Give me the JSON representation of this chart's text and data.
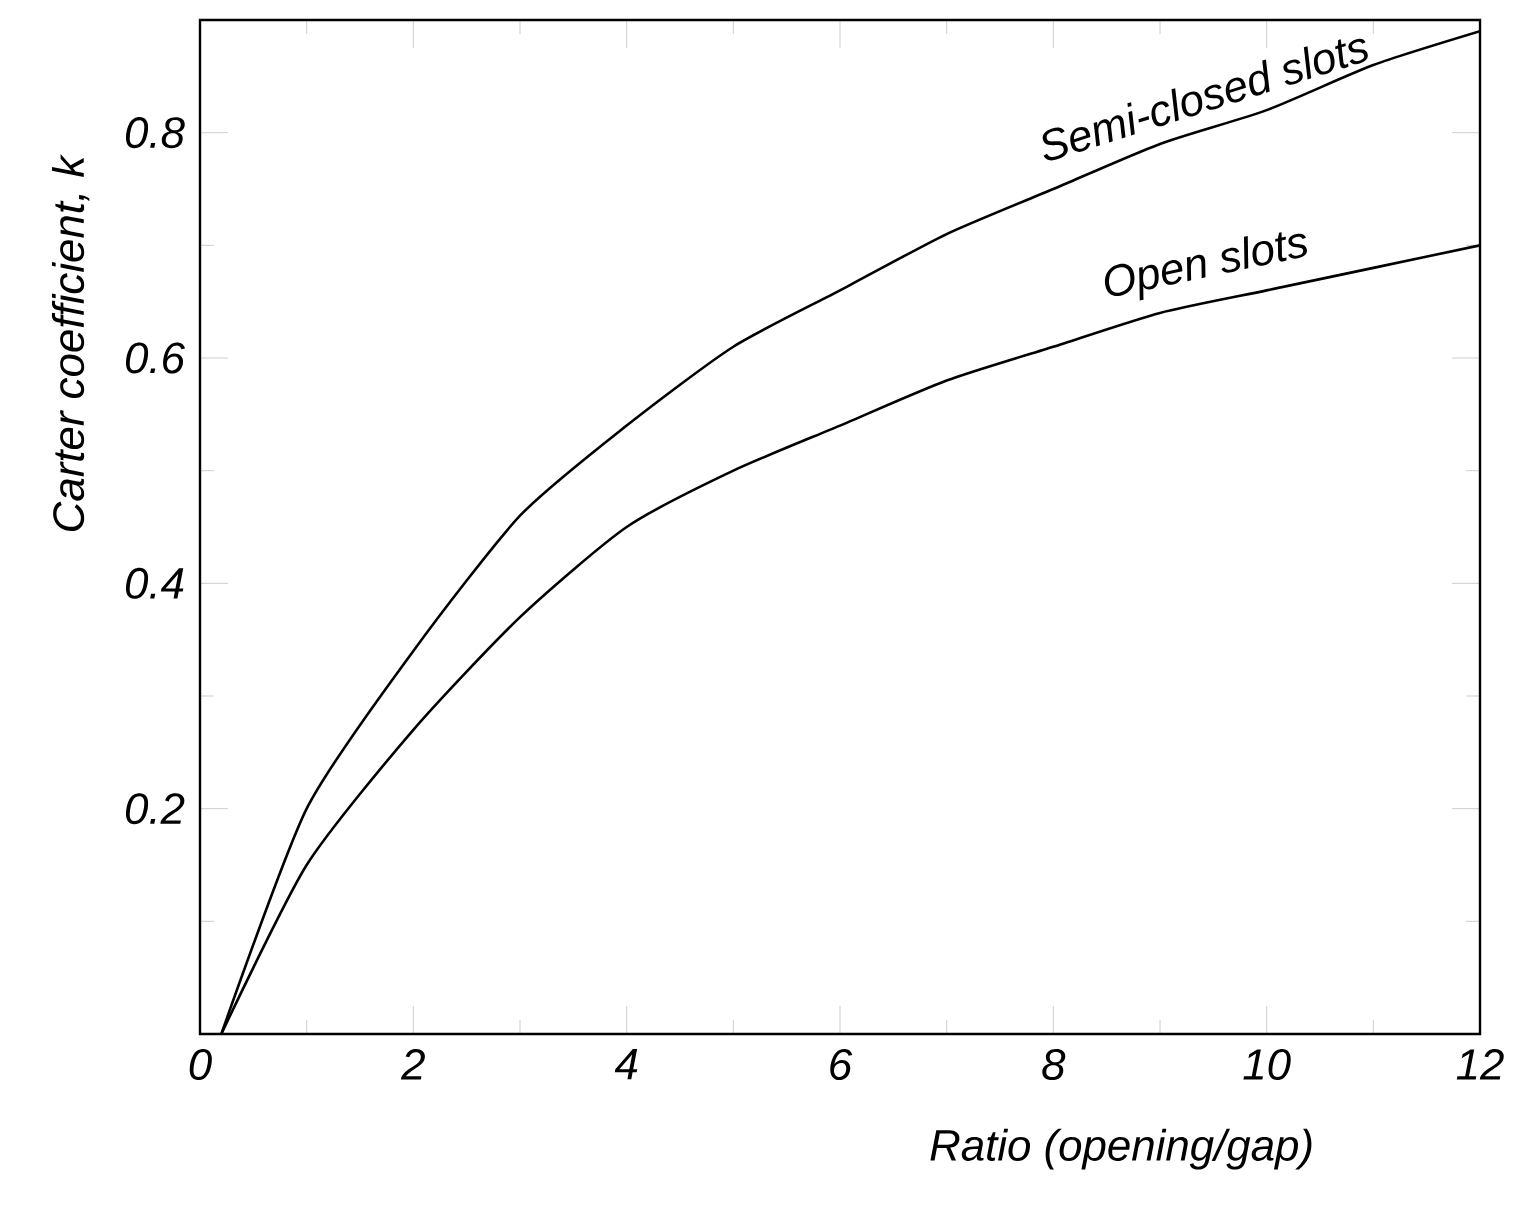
{
  "chart_data": {
    "type": "line",
    "xlabel": "Ratio (opening/gap)",
    "ylabel": "Carter coefficient, k",
    "series": [
      {
        "name": "Semi-closed slots",
        "color": "#000000",
        "x": [
          0.2,
          1,
          2,
          3,
          4,
          5,
          6,
          7,
          8,
          9,
          10,
          11,
          12
        ],
        "values": [
          0,
          0.2,
          0.34,
          0.46,
          0.54,
          0.61,
          0.66,
          0.71,
          0.75,
          0.79,
          0.82,
          0.86,
          0.89
        ]
      },
      {
        "name": "Open slots",
        "color": "#000000",
        "x": [
          0.2,
          1,
          2,
          3,
          4,
          5,
          6,
          7,
          8,
          9,
          10,
          11,
          12
        ],
        "values": [
          0,
          0.15,
          0.27,
          0.37,
          0.45,
          0.5,
          0.54,
          0.58,
          0.61,
          0.64,
          0.66,
          0.68,
          0.7
        ]
      }
    ],
    "xlim": [
      0,
      12
    ],
    "ylim": [
      0,
      0.9
    ],
    "xticks": [
      0,
      2,
      4,
      6,
      8,
      10,
      12
    ],
    "yticks": [
      {
        "value": 0,
        "label": null
      },
      0.2,
      0.4,
      0.6,
      0.8
    ],
    "grid": false,
    "marker": "none",
    "line_style": "solid"
  }
}
